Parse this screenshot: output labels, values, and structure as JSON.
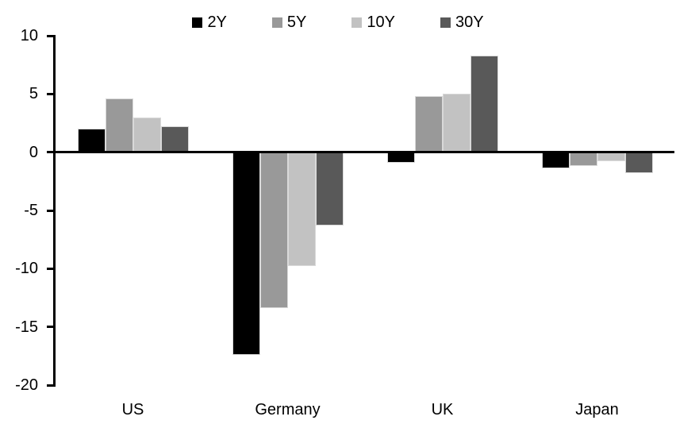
{
  "chart_data": {
    "type": "bar",
    "title": "",
    "xlabel": "",
    "ylabel": "",
    "categories": [
      "US",
      "Germany",
      "UK",
      "Japan"
    ],
    "series": [
      {
        "name": "2Y",
        "color": "#000000",
        "values": [
          2.0,
          -17.4,
          -0.9,
          -1.4
        ]
      },
      {
        "name": "5Y",
        "color": "#999999",
        "values": [
          4.6,
          -13.4,
          4.8,
          -1.2
        ]
      },
      {
        "name": "10Y",
        "color": "#c2c2c2",
        "values": [
          3.0,
          -9.8,
          5.0,
          -0.8
        ]
      },
      {
        "name": "30Y",
        "color": "#595959",
        "values": [
          2.2,
          -6.3,
          8.3,
          -1.8
        ]
      }
    ],
    "ylim": [
      -20,
      10
    ],
    "yticks": [
      10,
      5,
      0,
      -5,
      -10,
      -15,
      -20
    ],
    "legend_position": "top",
    "grid": false,
    "axis_color": "#000000",
    "bar_outline_color": "#d9d9d9",
    "background_color": "#ffffff"
  }
}
